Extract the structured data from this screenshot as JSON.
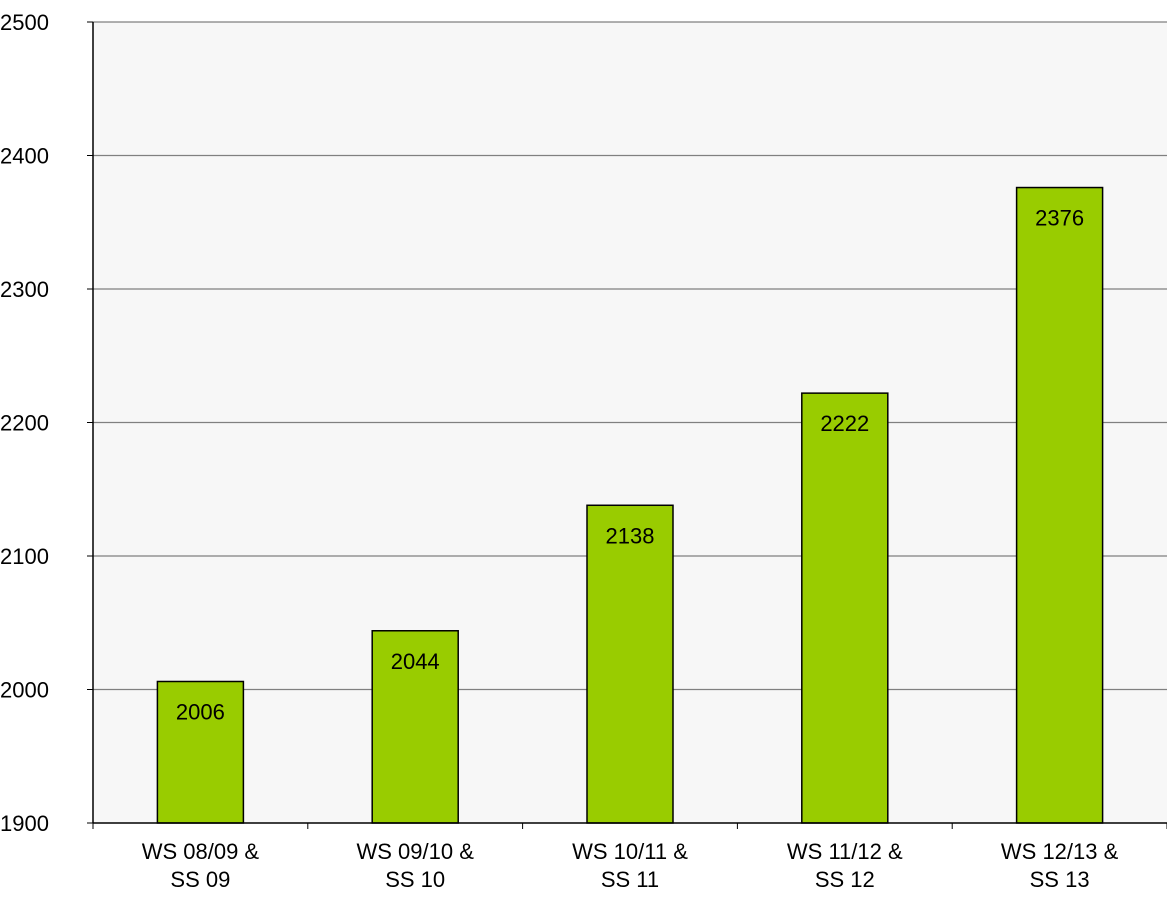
{
  "chart_data": {
    "type": "bar",
    "categories": [
      [
        "WS 08/09 &",
        "SS 09"
      ],
      [
        "WS 09/10 &",
        "SS 10"
      ],
      [
        "WS 10/11 &",
        "SS 11"
      ],
      [
        "WS 11/12 &",
        "SS 12"
      ],
      [
        "WS 12/13 &",
        "SS 13"
      ]
    ],
    "values": [
      2006,
      2044,
      2138,
      2222,
      2376
    ],
    "data_labels": [
      "2006",
      "2044",
      "2138",
      "2222",
      "2376"
    ],
    "ylim": [
      1900,
      2500
    ],
    "yticks": [
      1900,
      2000,
      2100,
      2200,
      2300,
      2400,
      2500
    ],
    "ytick_labels": [
      "1900",
      "2000",
      "2100",
      "2200",
      "2300",
      "2400",
      "2500"
    ],
    "title": "",
    "xlabel": "",
    "ylabel": "",
    "grid": true,
    "legend": "none",
    "colors": {
      "bar": "#99cc00",
      "bar_stroke": "#000000",
      "plot_background": "#f7f7f7",
      "grid": "#808080",
      "axis": "#000000",
      "text": "#000000"
    }
  }
}
